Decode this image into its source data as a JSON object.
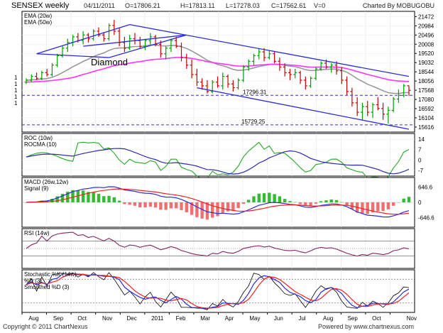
{
  "header": {
    "title": "SENSEX weekly",
    "date": "04/11/2011",
    "open": "O=17806.21",
    "high": "H=17813.11",
    "low": "L=17278.03",
    "close": "C=17562.61",
    "volume": "V=0",
    "charted_by": "Charted By MOBUGOBU"
  },
  "footer": {
    "left": "Copyright © 2011 ChartNexus",
    "right": "Powered by www.chartnexus.com"
  },
  "colors": {
    "up": "#00a000",
    "down": "#cc0000",
    "ema20": "#999999",
    "ema50": "#ff33ff",
    "channel": "#2b2bd9",
    "level": "#3333cc",
    "roc": "#22aa22",
    "rocma": "#2b2bb0",
    "macd": "#2b2bd9",
    "signal": "#ee2222",
    "hist_up": "#33bb33",
    "hist_down": "#f07070",
    "rsi": "#882266"
  },
  "chart_data": [
    {
      "type": "candlestick",
      "panel": "price",
      "legend": [
        "EMA (20w)",
        "EMA (50w)"
      ],
      "annotation": "Diamond",
      "levels": [
        {
          "value": 17296.31,
          "label": "17296.31"
        },
        {
          "value": 15729.25,
          "label": "15729.25"
        }
      ],
      "y_ticks": [
        "21472",
        "20984",
        "20496",
        "20008",
        "19520",
        "19032",
        "18544",
        "18056",
        "17568",
        "17080",
        "16592",
        "16104",
        "15616"
      ],
      "ylim": [
        15500,
        21600
      ],
      "x_labels": [
        "Aug",
        "Sep",
        "Oct",
        "Nov",
        "Dec",
        "2011",
        "Feb",
        "Mar",
        "Apr",
        "May",
        "Jun",
        "Jul",
        "Aug",
        "Sep",
        "Oct",
        "Nov"
      ],
      "ohlc": [
        [
          18000,
          18200,
          17900,
          18100
        ],
        [
          18100,
          18400,
          18000,
          18300
        ],
        [
          18300,
          18500,
          18100,
          18200
        ],
        [
          18200,
          18600,
          18100,
          18500
        ],
        [
          18500,
          18700,
          18300,
          18400
        ],
        [
          18400,
          19000,
          18300,
          18900
        ],
        [
          18900,
          19500,
          18800,
          19400
        ],
        [
          19400,
          19900,
          19300,
          19800
        ],
        [
          19800,
          20300,
          19600,
          20100
        ],
        [
          20100,
          20500,
          19900,
          20400
        ],
        [
          20400,
          20600,
          20100,
          20200
        ],
        [
          20200,
          20700,
          20000,
          20500
        ],
        [
          20500,
          20600,
          20100,
          20300
        ],
        [
          20300,
          20800,
          20200,
          20700
        ],
        [
          20700,
          20900,
          20400,
          20500
        ],
        [
          20500,
          20650,
          20150,
          20300
        ],
        [
          20300,
          21100,
          20200,
          21000
        ],
        [
          21000,
          21300,
          20500,
          20700
        ],
        [
          20700,
          20900,
          19900,
          20100
        ],
        [
          20100,
          20400,
          19600,
          19800
        ],
        [
          19800,
          20500,
          19700,
          20300
        ],
        [
          20300,
          20600,
          20000,
          20200
        ],
        [
          20200,
          20400,
          19800,
          19900
        ],
        [
          19900,
          20300,
          19700,
          20200
        ],
        [
          20200,
          20600,
          20000,
          20400
        ],
        [
          20400,
          20500,
          19900,
          20000
        ],
        [
          20000,
          20200,
          19300,
          19500
        ],
        [
          19500,
          19900,
          19200,
          19800
        ],
        [
          19800,
          20300,
          19600,
          20200
        ],
        [
          20200,
          20400,
          19800,
          19900
        ],
        [
          19900,
          20100,
          19100,
          19300
        ],
        [
          19300,
          19500,
          18700,
          18900
        ],
        [
          18900,
          19200,
          18200,
          18400
        ],
        [
          18400,
          18700,
          17800,
          18000
        ],
        [
          18000,
          18200,
          17600,
          17800
        ],
        [
          17800,
          18100,
          17400,
          17500
        ],
        [
          17500,
          18100,
          17400,
          18000
        ],
        [
          18000,
          18300,
          17700,
          17800
        ],
        [
          17800,
          18500,
          17600,
          18300
        ],
        [
          18300,
          18400,
          17700,
          17900
        ],
        [
          17900,
          18100,
          17500,
          17700
        ],
        [
          17700,
          18200,
          17600,
          18100
        ],
        [
          18100,
          18900,
          18000,
          18800
        ],
        [
          18800,
          19200,
          18600,
          19100
        ],
        [
          19100,
          19500,
          18900,
          19400
        ],
        [
          19400,
          19800,
          19200,
          19600
        ],
        [
          19600,
          19800,
          19100,
          19300
        ],
        [
          19300,
          19700,
          19200,
          19500
        ],
        [
          19500,
          19600,
          19000,
          19100
        ],
        [
          19100,
          19300,
          18600,
          18800
        ],
        [
          18800,
          19000,
          18300,
          18500
        ],
        [
          18500,
          18700,
          18100,
          18400
        ],
        [
          18400,
          18700,
          18200,
          18500
        ],
        [
          18500,
          18600,
          17900,
          18100
        ],
        [
          18100,
          18300,
          17600,
          17800
        ],
        [
          17800,
          18300,
          17700,
          18200
        ],
        [
          18200,
          18800,
          18100,
          18700
        ],
        [
          18700,
          19100,
          18600,
          19000
        ],
        [
          19000,
          19200,
          18700,
          18800
        ],
        [
          18800,
          19000,
          18500,
          18900
        ],
        [
          18900,
          19100,
          18400,
          18600
        ],
        [
          18600,
          18800,
          17900,
          18100
        ],
        [
          18100,
          18300,
          17300,
          17500
        ],
        [
          17500,
          17700,
          16700,
          16900
        ],
        [
          16900,
          17200,
          16200,
          16400
        ],
        [
          16400,
          16900,
          16000,
          16700
        ],
        [
          16700,
          17000,
          16200,
          16400
        ],
        [
          16400,
          16900,
          16100,
          16800
        ],
        [
          16800,
          17200,
          16500,
          16600
        ],
        [
          16600,
          16900,
          16000,
          16300
        ],
        [
          16300,
          16700,
          15800,
          16500
        ],
        [
          16500,
          17200,
          16400,
          17100
        ],
        [
          17100,
          17600,
          16900,
          17300
        ],
        [
          17300,
          17900,
          17200,
          17800
        ],
        [
          17806.21,
          17813.11,
          17278.03,
          17562.61
        ]
      ]
    },
    {
      "type": "line",
      "panel": "roc",
      "legend": [
        "ROC (10w)",
        "ROCMA (10)"
      ],
      "y_ticks": [
        "14",
        "7",
        "0",
        "-7"
      ],
      "ylim": [
        -10,
        17
      ]
    },
    {
      "type": "bar+line",
      "panel": "macd",
      "legend": [
        "MACD (26w,12w)",
        "Signal (9)"
      ],
      "y_ticks": [
        "646.6",
        "0",
        "-646.6"
      ],
      "ylim": [
        -1000,
        1000
      ]
    },
    {
      "type": "line",
      "panel": "rsi",
      "legend": [
        "RSI (14w)"
      ],
      "ylim": [
        0,
        100
      ]
    },
    {
      "type": "line",
      "panel": "stochastic",
      "legend": [
        "Stochastic %K (14w)",
        "%D (3)",
        "Smoothed %D (3)"
      ],
      "ylim": [
        0,
        100
      ]
    }
  ]
}
